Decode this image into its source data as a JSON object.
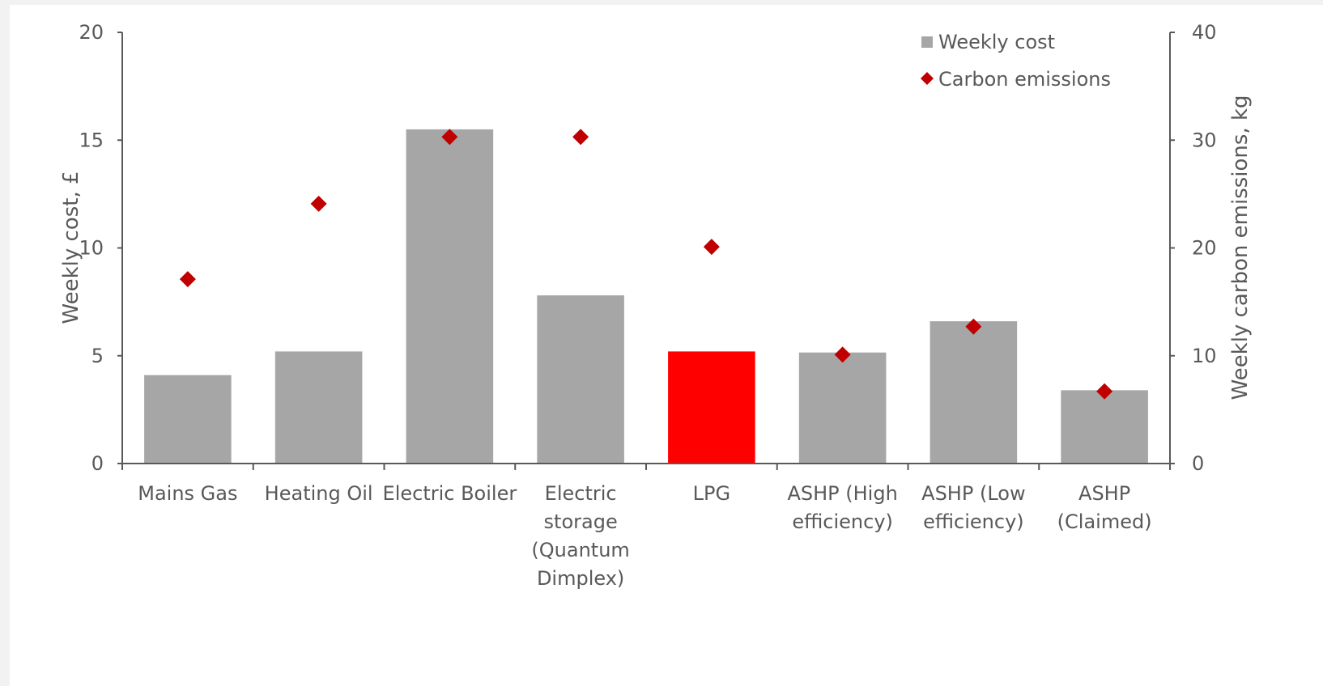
{
  "chart_data": {
    "type": "bar",
    "title": "",
    "categories": [
      [
        "Mains Gas"
      ],
      [
        "Heating Oil"
      ],
      [
        "Electric Boiler"
      ],
      [
        "Electric",
        "storage",
        "(Quantum",
        "Dimplex)"
      ],
      [
        "LPG"
      ],
      [
        "ASHP (High",
        "efficiency)"
      ],
      [
        "ASHP (Low",
        "efficiency)"
      ],
      [
        "ASHP",
        "(Claimed)"
      ]
    ],
    "series": [
      {
        "name": "Weekly cost",
        "kind": "bar",
        "axis": "left",
        "color": "#a6a6a6",
        "values": [
          4.1,
          5.2,
          15.5,
          7.8,
          5.2,
          5.15,
          6.6,
          3.4
        ]
      },
      {
        "name": "Carbon emissions",
        "kind": "scatter",
        "marker": "diamond",
        "axis": "right",
        "color": "#c00000",
        "values": [
          17.1,
          24.1,
          30.3,
          30.3,
          20.1,
          10.1,
          12.7,
          6.7
        ]
      }
    ],
    "highlight": {
      "index": 4,
      "color": "#ff0000"
    },
    "ylabel": "Weekly cost, £",
    "y2label": "Weekly carbon emissions, kg",
    "ylim": [
      0,
      20
    ],
    "y2lim": [
      0,
      40
    ],
    "yticks": [
      "0",
      "5",
      "10",
      "15",
      "20"
    ],
    "y2ticks": [
      "0",
      "10",
      "20",
      "30",
      "40"
    ],
    "grid": false,
    "legend_position": "top-right"
  }
}
